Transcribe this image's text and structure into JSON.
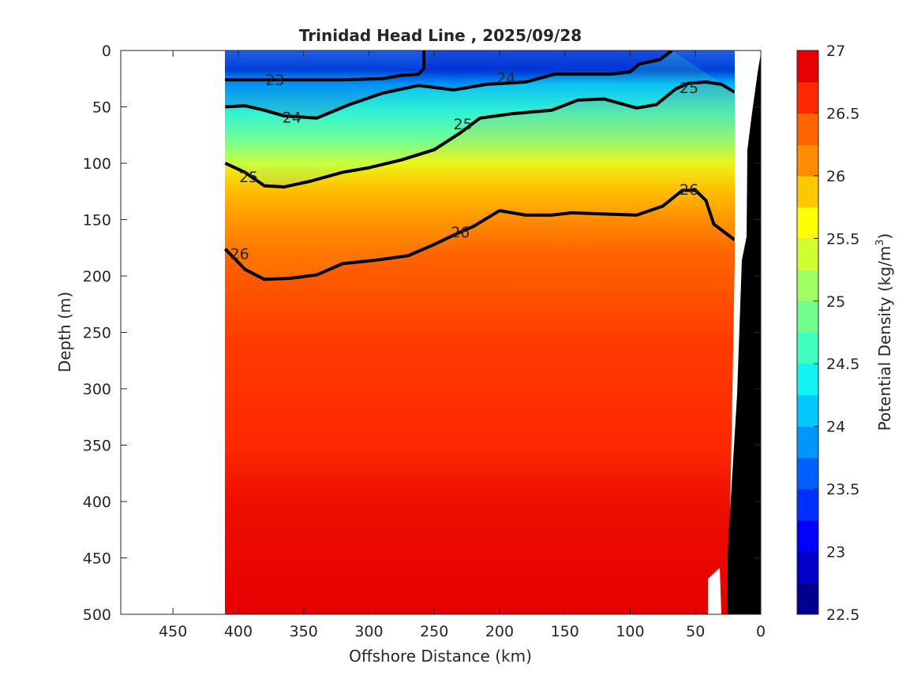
{
  "chart_data": {
    "type": "contour",
    "title": "Trinidad Head Line , 2025/09/28",
    "xlabel": "Offshore Distance (km)",
    "ylabel": "Depth (m)",
    "xlim": [
      490,
      0
    ],
    "ylim": [
      0,
      500
    ],
    "xticks": [
      "450",
      "400",
      "350",
      "300",
      "250",
      "200",
      "150",
      "100",
      "50",
      "0"
    ],
    "xtick_values": [
      450,
      400,
      350,
      300,
      250,
      200,
      150,
      100,
      50,
      0
    ],
    "yticks": [
      "0",
      "50",
      "100",
      "150",
      "200",
      "250",
      "300",
      "350",
      "400",
      "450",
      "500"
    ],
    "ytick_values": [
      0,
      50,
      100,
      150,
      200,
      250,
      300,
      350,
      400,
      450,
      500
    ],
    "colorbar": {
      "label_prefix": "Potential Density (kg/m",
      "label_sup": "3",
      "label_suffix": ")",
      "ticks": [
        "22.5",
        "23",
        "23.5",
        "24",
        "24.5",
        "25",
        "25.5",
        "26",
        "26.5",
        "27"
      ],
      "tick_values": [
        22.5,
        23,
        23.5,
        24,
        24.5,
        25,
        25.5,
        26,
        26.5,
        27
      ],
      "levels": [
        22.5,
        22.75,
        23,
        23.25,
        23.5,
        23.75,
        24,
        24.25,
        24.5,
        24.75,
        25,
        25.25,
        25.5,
        25.75,
        26,
        26.25,
        26.5,
        26.75,
        27
      ],
      "colors": [
        "#000090",
        "#0000c8",
        "#0000ff",
        "#0030ff",
        "#0060ff",
        "#0095ff",
        "#00c8ff",
        "#10f4f4",
        "#40ffbf",
        "#70ff8f",
        "#9fff60",
        "#cfff30",
        "#ffff00",
        "#ffc800",
        "#ff8c00",
        "#ff6400",
        "#ff2800",
        "#e60000",
        "#b40000"
      ]
    },
    "data_extent_km": [
      0,
      410
    ],
    "isopycnals": [
      {
        "level": 23.0,
        "label": "23",
        "label_at": [
          372,
          26
        ],
        "points": [
          [
            410,
            26
          ],
          [
            380,
            26
          ],
          [
            350,
            26
          ],
          [
            320,
            26
          ],
          [
            290,
            25
          ],
          [
            275,
            22
          ],
          [
            262,
            21
          ],
          [
            258,
            16
          ],
          [
            258,
            0
          ]
        ]
      },
      {
        "level": 24.0,
        "label": "24",
        "label_at": [
          359,
          59
        ],
        "points": [
          [
            410,
            50
          ],
          [
            395,
            49
          ],
          [
            380,
            53
          ],
          [
            365,
            58
          ],
          [
            340,
            60
          ],
          [
            315,
            48
          ],
          [
            290,
            38
          ],
          [
            262,
            31
          ],
          [
            235,
            35
          ],
          [
            210,
            30
          ],
          [
            180,
            28
          ],
          [
            158,
            21
          ],
          [
            140,
            21
          ],
          [
            115,
            21
          ],
          [
            100,
            19
          ],
          [
            93,
            12
          ],
          [
            77,
            8
          ],
          [
            68,
            0
          ]
        ]
      },
      {
        "level": 25.0,
        "label": "25",
        "label_at": [
          228,
          65
        ],
        "points": [
          [
            410,
            100
          ],
          [
            395,
            108
          ],
          [
            380,
            120
          ],
          [
            365,
            121
          ],
          [
            345,
            116
          ],
          [
            320,
            108
          ],
          [
            300,
            104
          ],
          [
            275,
            97
          ],
          [
            250,
            88
          ],
          [
            230,
            73
          ],
          [
            215,
            60
          ],
          [
            190,
            56
          ],
          [
            160,
            53
          ],
          [
            140,
            44
          ],
          [
            120,
            43
          ],
          [
            95,
            51
          ],
          [
            80,
            48
          ],
          [
            65,
            34
          ],
          [
            55,
            29
          ],
          [
            42,
            28
          ],
          [
            30,
            30
          ],
          [
            20,
            37
          ]
        ]
      },
      {
        "level": 26.0,
        "label": "26",
        "label_at": [
          399,
          180
        ],
        "points": [
          [
            410,
            176
          ],
          [
            395,
            194
          ],
          [
            380,
            203
          ],
          [
            360,
            202
          ],
          [
            340,
            199
          ],
          [
            320,
            189
          ],
          [
            295,
            186
          ],
          [
            270,
            182
          ],
          [
            250,
            172
          ],
          [
            232,
            162
          ],
          [
            220,
            156
          ],
          [
            200,
            142
          ],
          [
            180,
            146
          ],
          [
            160,
            146
          ],
          [
            145,
            144
          ],
          [
            120,
            145
          ],
          [
            95,
            146
          ],
          [
            75,
            138
          ],
          [
            60,
            124
          ],
          [
            50,
            124
          ],
          [
            42,
            133
          ],
          [
            36,
            154
          ],
          [
            20,
            168
          ]
        ]
      }
    ],
    "contour_labels": [
      {
        "text": "23",
        "x": 372,
        "y": 26
      },
      {
        "text": "24",
        "x": 359,
        "y": 59
      },
      {
        "text": "24",
        "x": 195,
        "y": 24
      },
      {
        "text": "25",
        "x": 392,
        "y": 112
      },
      {
        "text": "25",
        "x": 228,
        "y": 65
      },
      {
        "text": "25",
        "x": 55,
        "y": 33
      },
      {
        "text": "26",
        "x": 399,
        "y": 180
      },
      {
        "text": "26",
        "x": 230,
        "y": 161
      },
      {
        "text": "26",
        "x": 55,
        "y": 123
      }
    ]
  }
}
